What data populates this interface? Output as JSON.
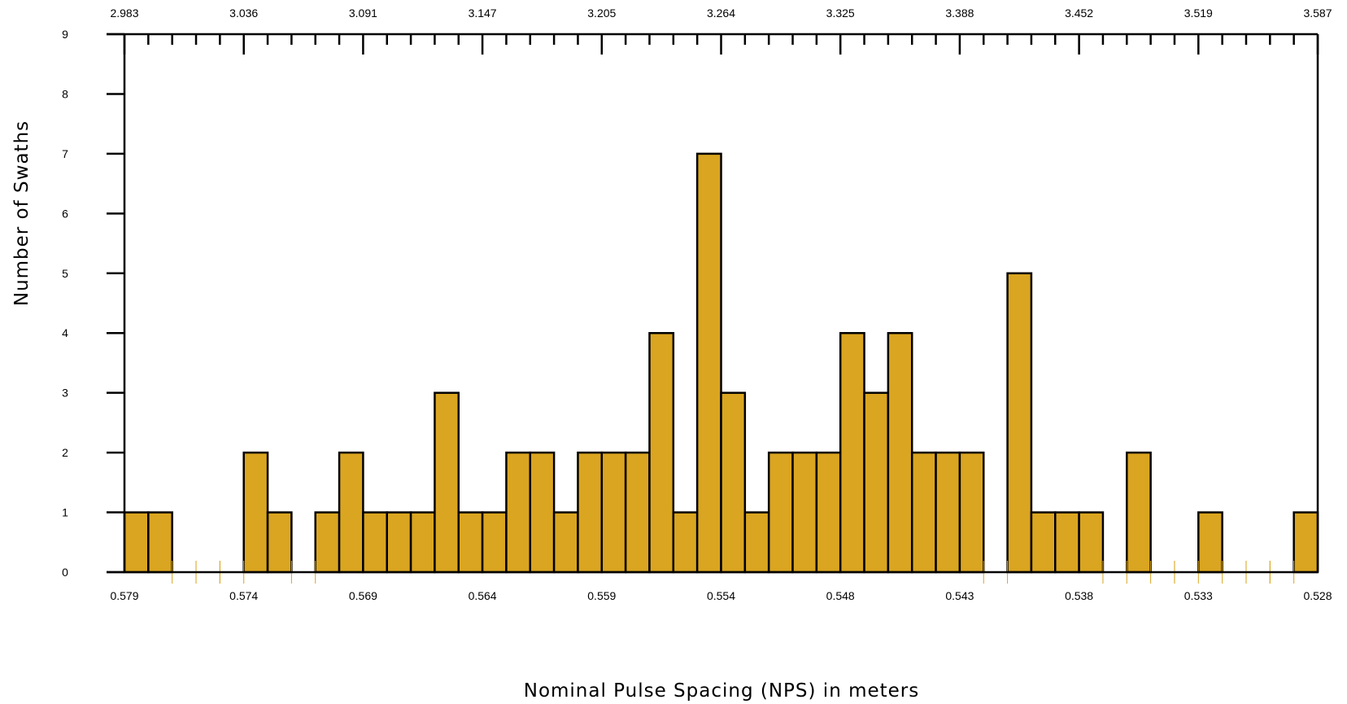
{
  "chart_data": {
    "type": "bar",
    "title": "",
    "xlabel": "Nominal Pulse Spacing (NPS) in meters",
    "ylabel": "Number of Swaths",
    "ylim": [
      0,
      9
    ],
    "y_ticks": [
      "0",
      "1",
      "2",
      "3",
      "4",
      "5",
      "6",
      "7",
      "8",
      "9"
    ],
    "bottom_tick_labels": [
      "0.579",
      "0.574",
      "0.569",
      "0.564",
      "0.559",
      "0.554",
      "0.548",
      "0.543",
      "0.538",
      "0.533",
      "0.528"
    ],
    "top_tick_labels": [
      "2.983",
      "3.036",
      "3.091",
      "3.147",
      "3.205",
      "3.264",
      "3.325",
      "3.388",
      "3.452",
      "3.519",
      "3.587"
    ],
    "bins": 50,
    "values": [
      1,
      1,
      0,
      0,
      0,
      2,
      1,
      0,
      1,
      2,
      1,
      1,
      1,
      3,
      1,
      1,
      2,
      2,
      1,
      2,
      2,
      2,
      4,
      1,
      7,
      3,
      1,
      2,
      2,
      2,
      4,
      3,
      4,
      2,
      2,
      2,
      0,
      5,
      1,
      1,
      1,
      0,
      2,
      0,
      0,
      1,
      0,
      0,
      0,
      1
    ],
    "grid": false,
    "legend": "none",
    "colors": {
      "bar_fill": "#DAA520",
      "bar_stroke": "#000000",
      "empty_bin_tick": "#DAA520",
      "axis": "#000000"
    }
  }
}
